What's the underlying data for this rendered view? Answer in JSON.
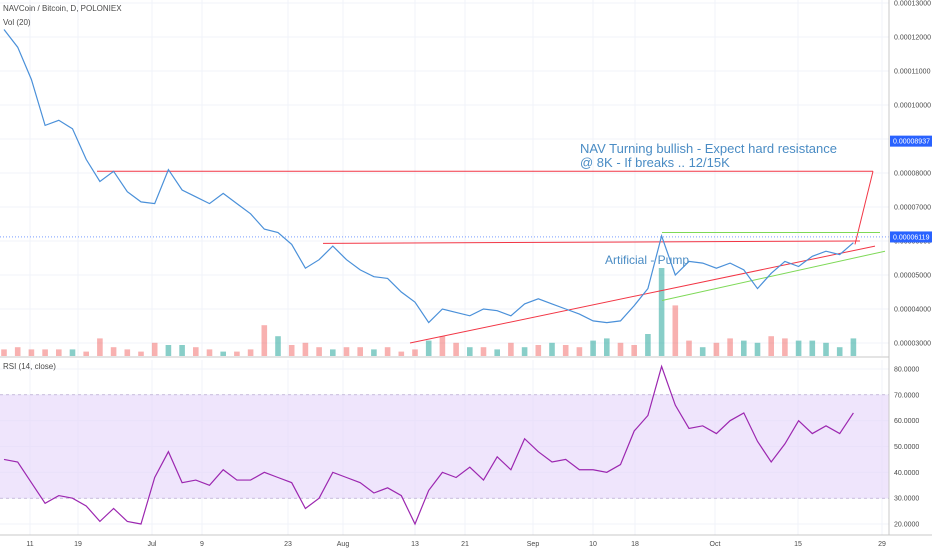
{
  "header": {
    "symbol": "NAVCoin / Bitcoin, D, POLONIEX",
    "vol": "Vol (20)",
    "rsi": "RSI (14, close)"
  },
  "annotations": {
    "line1": "NAV Turning bullish - Expect hard resistance",
    "line2": "@ 8K - If breaks .. 12/15K",
    "pump": "Artificial - Pump"
  },
  "colors": {
    "price": "#4a90d9",
    "up_bar": "#26a69a",
    "down_bar": "#ef5350",
    "rsi": "#9c27b0",
    "rsi_band": "#e6d7fb",
    "trend_red": "#f23645",
    "trend_green": "#4caf50",
    "current_tag": "#2962ff"
  },
  "chart_data": [
    {
      "type": "line",
      "name": "price",
      "yticks": [
        "0.00003000",
        "0.00004000",
        "0.00005000",
        "0.00006000",
        "0.00007000",
        "0.00008000",
        "0.00009000",
        "0.00010000",
        "0.00011000",
        "0.00012000",
        "0.00013000"
      ],
      "ylim": [
        2.75e-05,
        0.0001302
      ],
      "price_tag": "0.00008937",
      "current_tag": "0.00006119",
      "xticks": [
        "11",
        "19",
        "Jul",
        "9",
        "23",
        "Aug",
        "13",
        "21",
        "Sep",
        "10",
        "18",
        "Oct",
        "15",
        "29"
      ],
      "x": [
        0,
        2,
        4,
        6,
        8,
        10,
        12,
        14,
        16,
        18,
        20,
        22,
        24,
        26,
        28,
        30,
        32,
        34,
        36,
        38,
        40,
        42,
        44,
        46,
        48,
        50,
        52,
        54,
        56,
        58,
        60,
        62,
        64,
        66,
        68,
        70,
        72,
        74,
        76,
        78,
        80,
        82,
        84,
        86,
        88,
        90,
        92,
        94,
        96,
        98,
        100,
        102,
        104,
        106,
        108,
        110,
        112,
        114,
        116,
        118,
        120,
        122,
        124
      ],
      "y": [
        0.0001222,
        0.000117,
        0.0001075,
        9.4e-05,
        9.55e-05,
        9.3e-05,
        8.4e-05,
        7.75e-05,
        8.05e-05,
        7.45e-05,
        7.15e-05,
        7.1e-05,
        8.1e-05,
        7.5e-05,
        7.3e-05,
        7.1e-05,
        7.4e-05,
        7.1e-05,
        6.8e-05,
        6.35e-05,
        6.25e-05,
        5.9e-05,
        5.2e-05,
        5.45e-05,
        5.85e-05,
        5.45e-05,
        5.15e-05,
        4.95e-05,
        4.9e-05,
        4.5e-05,
        4.2e-05,
        3.6e-05,
        4e-05,
        3.9e-05,
        3.8e-05,
        4e-05,
        3.95e-05,
        3.8e-05,
        4.15e-05,
        4.3e-05,
        4.15e-05,
        4e-05,
        3.85e-05,
        3.65e-05,
        3.6e-05,
        3.65e-05,
        4.1e-05,
        4.6e-05,
        6.15e-05,
        5e-05,
        5.4e-05,
        5.35e-05,
        5.2e-05,
        5.35e-05,
        5.15e-05,
        4.6e-05,
        5.05e-05,
        5.4e-05,
        5.25e-05,
        5.55e-05,
        5.7e-05,
        5.6e-05,
        5.95e-05
      ]
    },
    {
      "type": "bar",
      "name": "Vol (20)",
      "values_relative": [
        0.15,
        0.2,
        0.15,
        0.15,
        0.15,
        0.15,
        0.1,
        0.4,
        0.2,
        0.15,
        0.1,
        0.3,
        0.25,
        0.25,
        0.2,
        0.15,
        0.1,
        0.1,
        0.15,
        0.7,
        0.45,
        0.25,
        0.3,
        0.2,
        0.15,
        0.2,
        0.2,
        0.15,
        0.2,
        0.1,
        0.15,
        0.35,
        0.45,
        0.3,
        0.2,
        0.2,
        0.15,
        0.3,
        0.2,
        0.25,
        0.3,
        0.25,
        0.2,
        0.35,
        0.4,
        0.3,
        0.25,
        0.5,
        2.0,
        1.15,
        0.35,
        0.2,
        0.3,
        0.4,
        0.35,
        0.3,
        0.45,
        0.4,
        0.35,
        0.35,
        0.3,
        0.2,
        0.4
      ],
      "direction": [
        "d",
        "d",
        "d",
        "d",
        "d",
        "u",
        "d",
        "d",
        "d",
        "d",
        "d",
        "d",
        "u",
        "u",
        "d",
        "d",
        "u",
        "d",
        "d",
        "d",
        "u",
        "d",
        "d",
        "d",
        "u",
        "d",
        "d",
        "u",
        "d",
        "d",
        "d",
        "u",
        "d",
        "d",
        "u",
        "d",
        "u",
        "d",
        "u",
        "d",
        "u",
        "d",
        "d",
        "u",
        "u",
        "d",
        "d",
        "u",
        "u",
        "d",
        "d",
        "u",
        "d",
        "d",
        "u",
        "u",
        "d",
        "d",
        "u",
        "u",
        "u",
        "u",
        "u"
      ]
    },
    {
      "type": "line",
      "name": "RSI (14, close)",
      "yticks": [
        "20.0000",
        "30.0000",
        "40.0000",
        "50.0000",
        "60.0000",
        "70.0000",
        "80.0000"
      ],
      "ylim": [
        18,
        82
      ],
      "band": [
        30,
        70
      ],
      "x": [
        0,
        2,
        4,
        6,
        8,
        10,
        12,
        14,
        16,
        18,
        20,
        22,
        24,
        26,
        28,
        30,
        32,
        34,
        36,
        38,
        40,
        42,
        44,
        46,
        48,
        50,
        52,
        54,
        56,
        58,
        60,
        62,
        64,
        66,
        68,
        70,
        72,
        74,
        76,
        78,
        80,
        82,
        84,
        86,
        88,
        90,
        92,
        94,
        96,
        98,
        100,
        102,
        104,
        106,
        108,
        110,
        112,
        114,
        116,
        118,
        120,
        122,
        124
      ],
      "y": [
        45,
        44,
        36,
        28,
        31,
        30,
        27,
        21,
        26,
        21,
        20,
        38,
        48,
        36,
        37,
        35,
        41,
        37,
        37,
        40,
        38,
        36,
        26,
        30,
        40,
        38,
        36,
        32,
        34,
        31,
        20,
        33,
        40,
        38,
        42,
        37,
        46,
        41,
        53,
        48,
        44,
        45,
        41,
        41,
        40,
        43,
        56,
        62,
        81,
        66,
        57,
        58,
        55,
        60,
        63,
        52,
        44,
        51,
        60,
        55,
        58,
        55,
        63
      ]
    }
  ]
}
